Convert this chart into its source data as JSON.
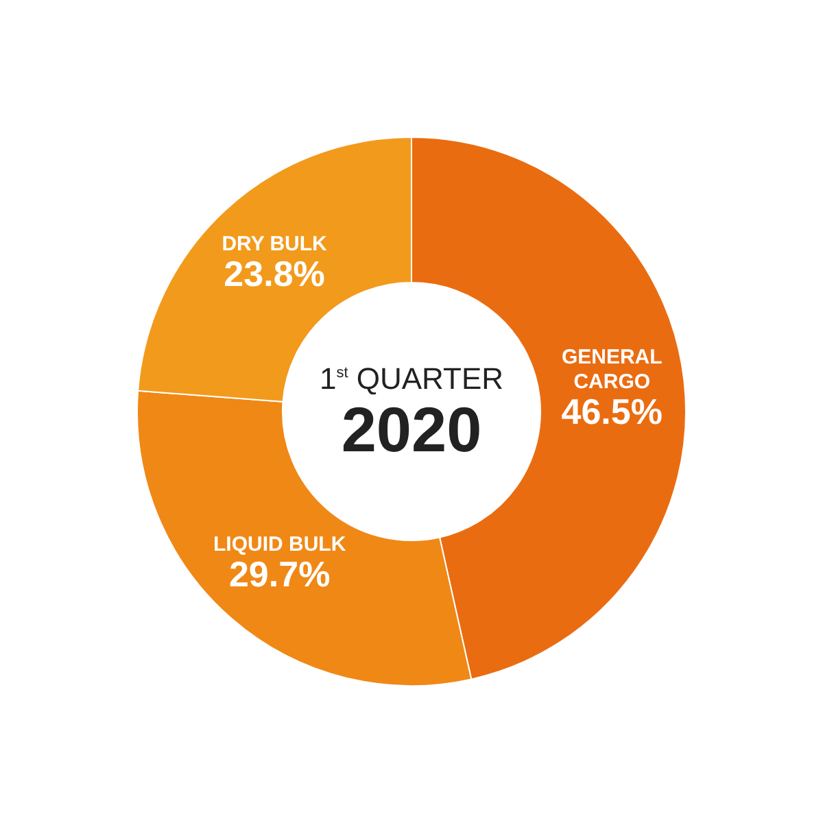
{
  "chart_data": {
    "type": "donut",
    "title": "1$^{st}$ QUARTER",
    "subtitle": "2020",
    "categories": [
      "GENERAL CARGO",
      "LIQUID BULK",
      "DRY BULK"
    ],
    "values": [
      46.5,
      29.7,
      23.8
    ],
    "value_labels": [
      "46.5%",
      "29.7%",
      "23.8%"
    ],
    "colors": [
      "#ea6c10",
      "#f08816",
      "#f29a1c"
    ],
    "legend": false
  }
}
